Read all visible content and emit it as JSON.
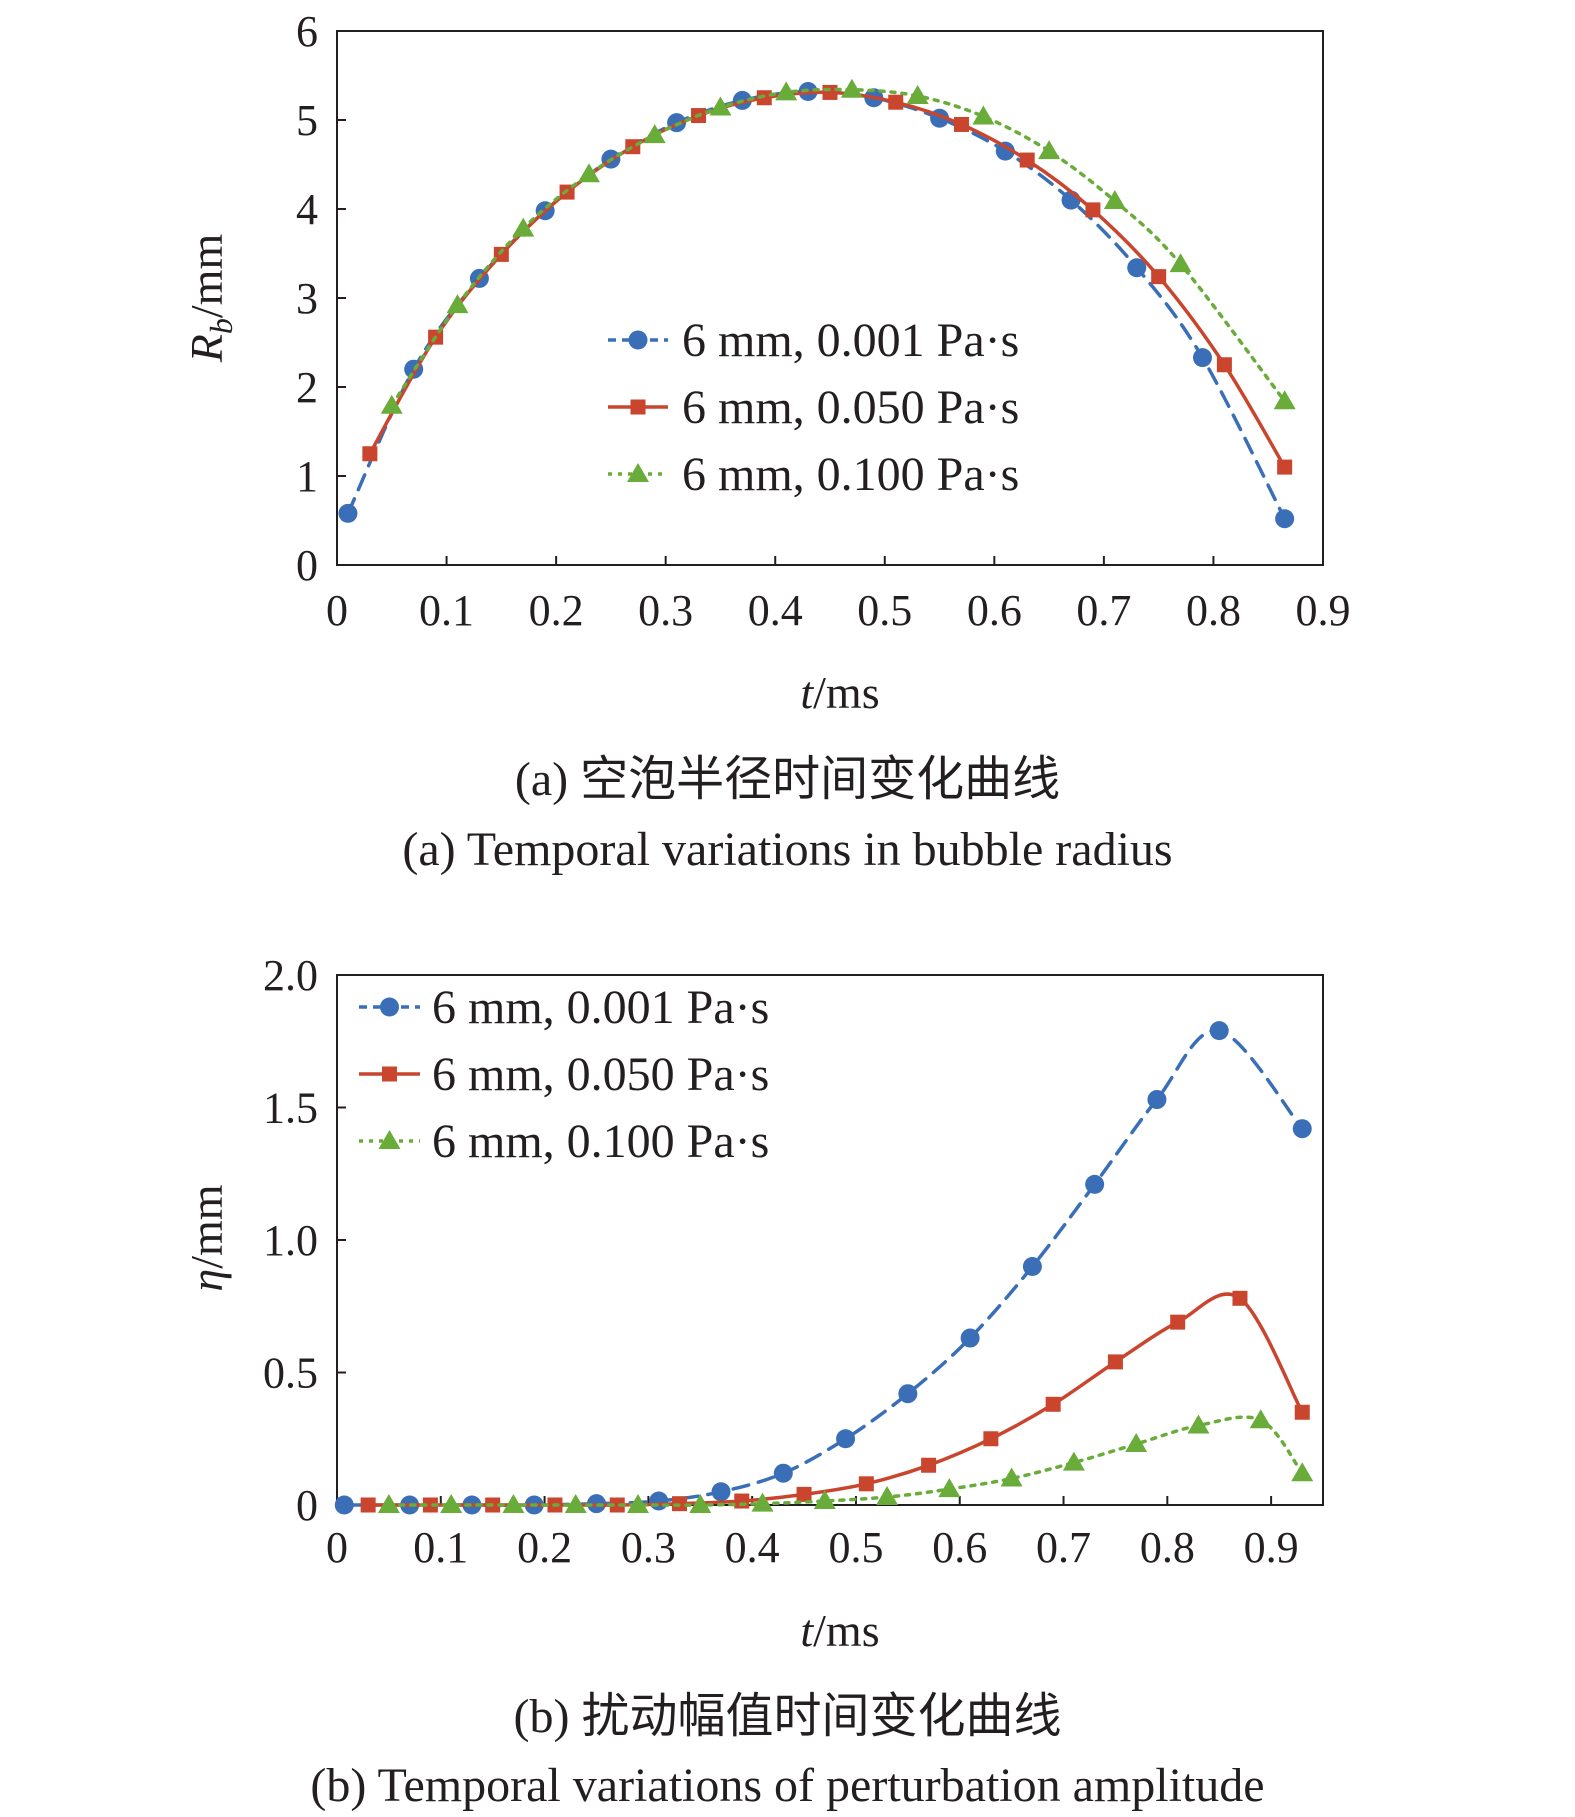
{
  "chart_data": [
    {
      "type": "line",
      "xlabel_var": "t",
      "xlabel_unit": "/ms",
      "ylabel_var": "R",
      "ylabel_sub": "b",
      "ylabel_unit": "/mm",
      "xlim": [
        0,
        0.9
      ],
      "ylim": [
        0,
        6
      ],
      "xticks": [
        "0",
        "0.1",
        "0.2",
        "0.3",
        "0.4",
        "0.5",
        "0.6",
        "0.7",
        "0.8",
        "0.9"
      ],
      "yticks": [
        "0",
        "1",
        "2",
        "3",
        "4",
        "5",
        "6"
      ],
      "legend_position": "center",
      "grid": false,
      "caption_zh": "(a) 空泡半径时间变化曲线",
      "caption_en": "(a) Temporal variations in bubble radius",
      "series": [
        {
          "name": "6 mm, 0.001 Pa·s",
          "color": "#3a6fb7",
          "marker": "circle",
          "dash": "dash",
          "x": [
            0.01,
            0.07,
            0.13,
            0.19,
            0.25,
            0.31,
            0.37,
            0.43,
            0.49,
            0.55,
            0.61,
            0.67,
            0.73,
            0.79,
            0.865
          ],
          "y": [
            0.58,
            2.2,
            3.22,
            3.98,
            4.56,
            4.97,
            5.22,
            5.32,
            5.25,
            5.02,
            4.65,
            4.1,
            3.34,
            2.33,
            0.52
          ]
        },
        {
          "name": "6 mm, 0.050 Pa·s",
          "color": "#c9452e",
          "marker": "square",
          "dash": "solid",
          "x": [
            0.03,
            0.09,
            0.15,
            0.21,
            0.27,
            0.33,
            0.39,
            0.45,
            0.51,
            0.57,
            0.63,
            0.69,
            0.75,
            0.81,
            0.865
          ],
          "y": [
            1.25,
            2.56,
            3.49,
            4.19,
            4.7,
            5.05,
            5.25,
            5.31,
            5.2,
            4.95,
            4.55,
            3.99,
            3.24,
            2.25,
            1.1
          ]
        },
        {
          "name": "6 mm, 0.100 Pa·s",
          "color": "#6aac3a",
          "marker": "triangle",
          "dash": "dot",
          "x": [
            0.05,
            0.11,
            0.17,
            0.23,
            0.29,
            0.35,
            0.41,
            0.47,
            0.53,
            0.59,
            0.65,
            0.71,
            0.77,
            0.865
          ],
          "y": [
            1.79,
            2.92,
            3.78,
            4.39,
            4.83,
            5.14,
            5.31,
            5.34,
            5.27,
            5.04,
            4.65,
            4.09,
            3.38,
            1.84
          ]
        }
      ]
    },
    {
      "type": "line",
      "xlabel_var": "t",
      "xlabel_unit": "/ms",
      "ylabel_var": "η",
      "ylabel_unit": "/mm",
      "xlim": [
        0,
        0.95
      ],
      "ylim": [
        0,
        2.0
      ],
      "xticks": [
        "0",
        "0.1",
        "0.2",
        "0.3",
        "0.4",
        "0.5",
        "0.6",
        "0.7",
        "0.8",
        "0.9"
      ],
      "xtick_values": [
        0,
        0.1,
        0.2,
        0.3,
        0.4,
        0.5,
        0.6,
        0.7,
        0.8,
        0.9
      ],
      "yticks": [
        "0",
        "0.5",
        "1.0",
        "1.5",
        "2.0"
      ],
      "ytick_values": [
        0,
        0.5,
        1.0,
        1.5,
        2.0
      ],
      "legend_position": "top-left",
      "grid": false,
      "caption_zh": "(b) 扰动幅值时间变化曲线",
      "caption_en": "(b) Temporal variations of perturbation amplitude",
      "series": [
        {
          "name": "6 mm, 0.001 Pa·s",
          "color": "#3a6fb7",
          "marker": "circle",
          "dash": "dash",
          "x": [
            0.007,
            0.07,
            0.13,
            0.19,
            0.25,
            0.31,
            0.37,
            0.43,
            0.49,
            0.55,
            0.61,
            0.67,
            0.73,
            0.79,
            0.85,
            0.93
          ],
          "y": [
            0.0,
            0.0,
            0.0,
            0.0,
            0.005,
            0.015,
            0.05,
            0.12,
            0.25,
            0.42,
            0.63,
            0.9,
            1.21,
            1.53,
            1.79,
            1.42
          ]
        },
        {
          "name": "6 mm, 0.050 Pa·s",
          "color": "#c9452e",
          "marker": "square",
          "dash": "solid",
          "x": [
            0.03,
            0.09,
            0.15,
            0.21,
            0.27,
            0.33,
            0.39,
            0.45,
            0.51,
            0.57,
            0.63,
            0.69,
            0.75,
            0.81,
            0.87,
            0.93
          ],
          "y": [
            0.0,
            0.0,
            0.0,
            0.0,
            0.0,
            0.005,
            0.015,
            0.04,
            0.08,
            0.15,
            0.25,
            0.38,
            0.54,
            0.69,
            0.78,
            0.35
          ]
        },
        {
          "name": "6 mm, 0.100 Pa·s",
          "color": "#6aac3a",
          "marker": "triangle",
          "dash": "dot",
          "x": [
            0.05,
            0.11,
            0.17,
            0.23,
            0.29,
            0.35,
            0.41,
            0.47,
            0.53,
            0.59,
            0.65,
            0.71,
            0.77,
            0.83,
            0.89,
            0.93
          ],
          "y": [
            0.0,
            0.0,
            0.0,
            0.0,
            0.0,
            0.0,
            0.005,
            0.015,
            0.03,
            0.06,
            0.1,
            0.16,
            0.23,
            0.3,
            0.32,
            0.12
          ]
        }
      ]
    }
  ]
}
